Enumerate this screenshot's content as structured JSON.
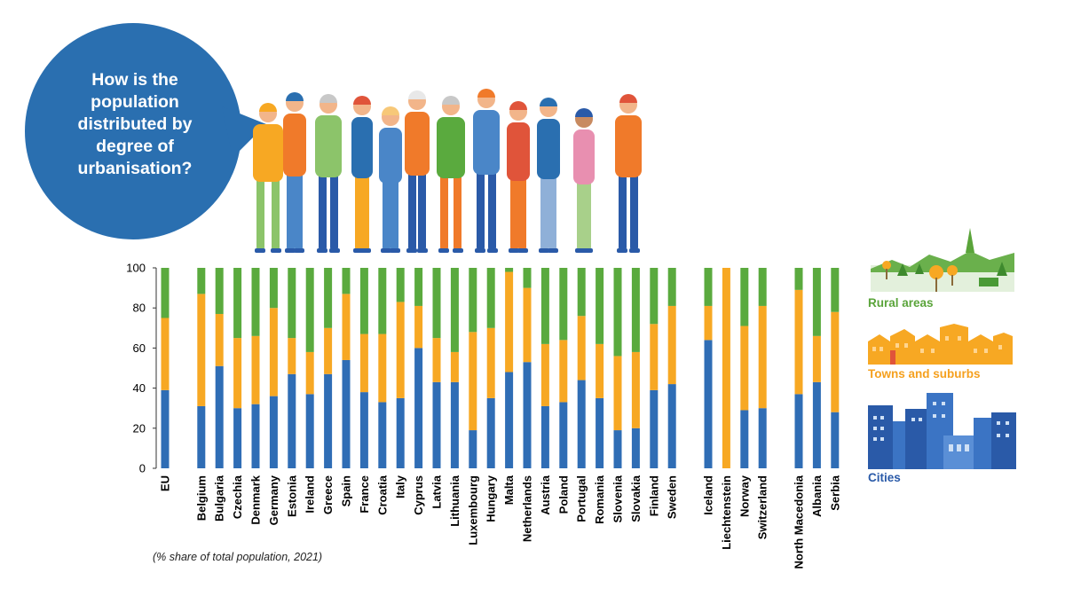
{
  "bubble": {
    "question": "How is the population distributed by degree of urbanisation?"
  },
  "legend": {
    "rural": "Rural areas",
    "towns": "Towns and suburbs",
    "cities": "Cities"
  },
  "note": "(% share of total population, 2021)",
  "colors": {
    "cities": "#2f6db5",
    "towns": "#f7a823",
    "rural": "#5aaa3e",
    "bubble": "#2a6fb0"
  },
  "chart_data": {
    "type": "bar",
    "stacked": true,
    "yticks": [
      0,
      20,
      40,
      60,
      80,
      100
    ],
    "ylim": [
      0,
      100
    ],
    "categories": [
      "EU",
      "Belgium",
      "Bulgaria",
      "Czechia",
      "Denmark",
      "Germany",
      "Estonia",
      "Ireland",
      "Greece",
      "Spain",
      "France",
      "Croatia",
      "Italy",
      "Cyprus",
      "Latvia",
      "Lithuania",
      "Luxembourg",
      "Hungary",
      "Malta",
      "Netherlands",
      "Austria",
      "Poland",
      "Portugal",
      "Romania",
      "Slovenia",
      "Slovakia",
      "Finland",
      "Sweden",
      "Iceland",
      "Liechtenstein",
      "Norway",
      "Switzerland",
      "North Macedonia",
      "Albania",
      "Serbia"
    ],
    "series": [
      {
        "name": "Cities",
        "values": [
          39,
          31,
          51,
          30,
          32,
          36,
          47,
          37,
          47,
          54,
          38,
          33,
          35,
          60,
          43,
          43,
          19,
          35,
          48,
          53,
          31,
          33,
          44,
          35,
          19,
          20,
          39,
          42,
          64,
          0,
          29,
          30,
          37,
          43,
          28
        ]
      },
      {
        "name": "Towns and suburbs",
        "values": [
          36,
          56,
          26,
          35,
          34,
          44,
          18,
          21,
          23,
          33,
          29,
          34,
          48,
          21,
          22,
          15,
          49,
          35,
          50,
          37,
          31,
          31,
          32,
          27,
          37,
          38,
          33,
          39,
          17,
          100,
          42,
          51,
          52,
          23,
          50
        ]
      },
      {
        "name": "Rural areas",
        "values": [
          25,
          13,
          23,
          35,
          34,
          20,
          35,
          42,
          30,
          13,
          33,
          33,
          17,
          19,
          35,
          42,
          32,
          30,
          2,
          10,
          38,
          36,
          24,
          38,
          44,
          42,
          28,
          19,
          19,
          0,
          29,
          19,
          11,
          34,
          22
        ]
      }
    ]
  }
}
